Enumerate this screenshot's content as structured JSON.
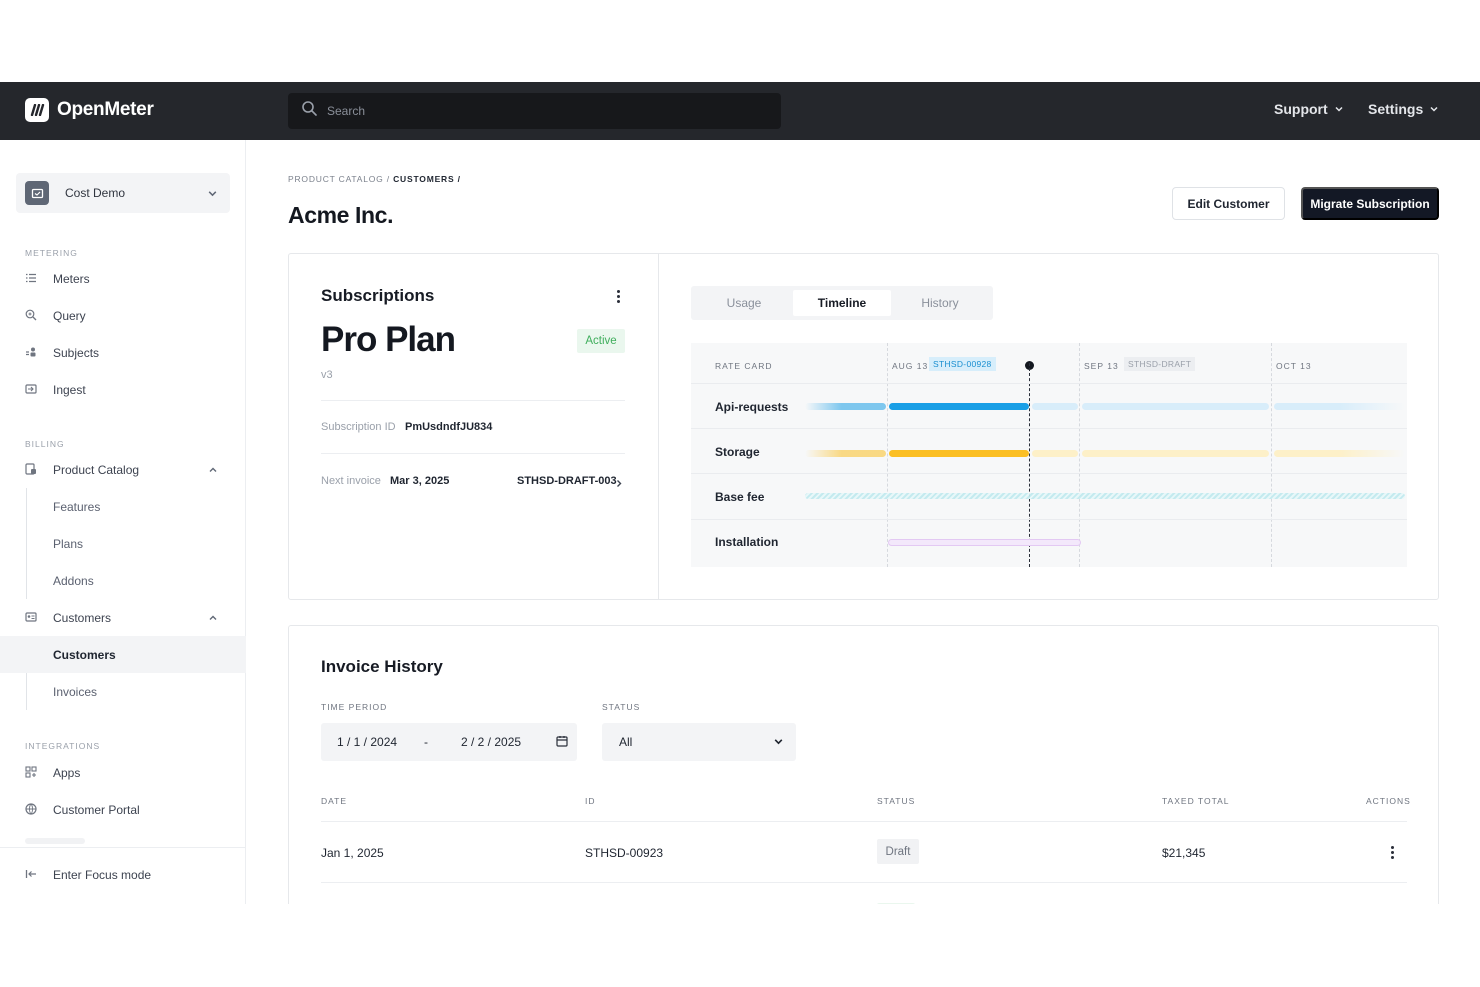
{
  "app": {
    "brand": "OpenMeter",
    "search_placeholder": "Search",
    "top_nav": {
      "support": "Support",
      "settings": "Settings"
    }
  },
  "sidebar": {
    "workspace": "Cost Demo",
    "sections": {
      "metering": "METERING",
      "billing": "BILLING",
      "integrations": "INTEGRATIONS"
    },
    "metering_items": [
      "Meters",
      "Query",
      "Subjects",
      "Ingest"
    ],
    "billing": {
      "product_catalog": "Product Catalog",
      "product_catalog_children": [
        "Features",
        "Plans",
        "Addons"
      ],
      "customers": "Customers",
      "customers_children": [
        "Customers",
        "Invoices"
      ]
    },
    "integrations_items": [
      "Apps",
      "Customer Portal"
    ],
    "focus_mode": "Enter Focus mode"
  },
  "page": {
    "breadcrumb": {
      "parent": "PRODUCT CATALOG",
      "current": "CUSTOMERS"
    },
    "title": "Acme Inc.",
    "buttons": {
      "edit": "Edit Customer",
      "migrate": "Migrate Subscription"
    }
  },
  "subscription": {
    "heading": "Subscriptions",
    "plan_name": "Pro Plan",
    "plan_version": "v3",
    "status": "Active",
    "id_label": "Subscription ID",
    "id_value": "PmUsdndfJU834",
    "next_invoice_label": "Next invoice",
    "next_invoice_date": "Mar 3, 2025",
    "next_invoice_id": "STHSD-DRAFT-003"
  },
  "timeline": {
    "tabs": [
      "Usage",
      "Timeline",
      "History"
    ],
    "active_tab": "Timeline",
    "rate_card_label": "RATE CARD",
    "periods": [
      {
        "label": "AUG 13",
        "chip": "STHSD-00928"
      },
      {
        "label": "SEP 13",
        "chip": "STHSD-DRAFT"
      },
      {
        "label": "OCT 13",
        "chip": ""
      }
    ],
    "rows": [
      "Api-requests",
      "Storage",
      "Base fee",
      "Installation"
    ],
    "colors": {
      "api": "#1a9fe6",
      "storage": "#fbbf24",
      "base_fee": "#a5e3ea",
      "installation": "#ecd9f7"
    }
  },
  "invoices": {
    "heading": "Invoice History",
    "time_period_label": "TIME PERIOD",
    "date_from": "1 / 1 / 2024",
    "date_sep": "-",
    "date_to": "2 / 2 / 2025",
    "status_label": "STATUS",
    "status_value": "All",
    "columns": [
      "DATE",
      "ID",
      "STATUS",
      "TAXED TOTAL",
      "ACTIONS"
    ],
    "rows": [
      {
        "date": "Jan 1, 2025",
        "id": "STHSD-00923",
        "status": "Draft",
        "total": "$21,345"
      }
    ]
  }
}
